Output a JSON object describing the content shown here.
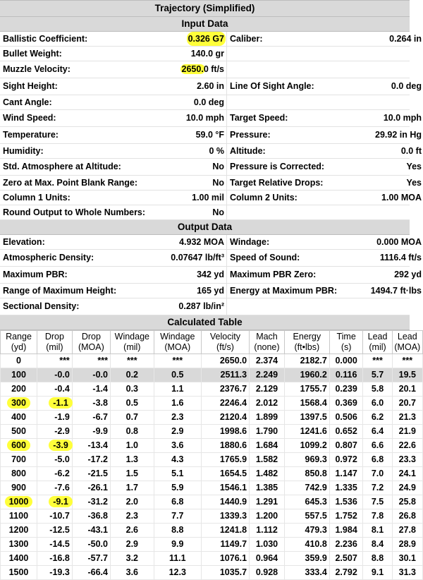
{
  "title": "Trajectory (Simplified)",
  "input_section_title": "Input Data",
  "input_rows": [
    {
      "l1": "Ballistic Coefficient:",
      "v1": "0.326 G7",
      "l2": "Caliber:",
      "v2": "0.264 in",
      "hl": true
    },
    {
      "l1": "Bullet Weight:",
      "v1": "140.0 gr",
      "l2": "",
      "v2": ""
    },
    {
      "l1": "Muzzle Velocity:",
      "v1a": "2650.",
      "v1b": "0 ft/s",
      "l2": "",
      "v2": "",
      "gap": true,
      "split": true
    },
    {
      "l1": "Sight Height:",
      "v1": "2.60 in",
      "l2": "Line Of Sight Angle:",
      "v2": "0.0 deg",
      "gap": true
    },
    {
      "l1": "Cant Angle:",
      "v1": "0.0 deg",
      "l2": "",
      "v2": ""
    },
    {
      "l1": "Wind Speed:",
      "v1": "10.0 mph",
      "l2": "Target Speed:",
      "v2": "10.0 mph",
      "gap": true
    },
    {
      "l1": "Temperature:",
      "v1": "59.0 °F",
      "l2": "Pressure:",
      "v2": "29.92 in Hg",
      "gap": true
    },
    {
      "l1": "Humidity:",
      "v1": "0 %",
      "l2": "Altitude:",
      "v2": "0.0 ft"
    },
    {
      "l1": "Std. Atmosphere at Altitude:",
      "v1": "No",
      "l2": "Pressure is Corrected:",
      "v2": "Yes",
      "gap": true
    },
    {
      "l1": "Zero at Max. Point Blank Range:",
      "v1": "No",
      "l2": "Target Relative Drops:",
      "v2": "Yes"
    },
    {
      "l1": "Column 1 Units:",
      "v1": "1.00 mil",
      "l2": "Column 2 Units:",
      "v2": "1.00 MOA"
    },
    {
      "l1": "Round Output to Whole Numbers:",
      "v1": "No",
      "l2": "",
      "v2": ""
    }
  ],
  "output_section_title": "Output Data",
  "output_rows": [
    {
      "l1": "Elevation:",
      "v1": "4.932 MOA",
      "l2": "Windage:",
      "v2": "0.000 MOA"
    },
    {
      "l1": "Atmospheric Density:",
      "v1": "0.07647 lb/ft³",
      "l2": "Speed of Sound:",
      "v2": "1116.4 ft/s",
      "gap": true
    },
    {
      "l1": "Maximum PBR:",
      "v1": "342 yd",
      "l2": "Maximum PBR Zero:",
      "v2": "292 yd",
      "gap": true
    },
    {
      "l1": "Range of Maximum Height:",
      "v1": "165 yd",
      "l2": "Energy at Maximum PBR:",
      "v2": "1494.7 ft·lbs"
    },
    {
      "l1": "Sectional Density:",
      "v1": "0.287 lb/in²",
      "l2": "",
      "v2": "",
      "gap": true
    }
  ],
  "table_section_title": "Calculated Table",
  "table_headers": [
    [
      "Range",
      "(yd)"
    ],
    [
      "Drop",
      "(mil)"
    ],
    [
      "Drop",
      "(MOA)"
    ],
    [
      "Windage",
      "(mil)"
    ],
    [
      "Windage",
      "(MOA)"
    ],
    [
      "Velocity",
      "(ft/s)"
    ],
    [
      "Mach",
      "(none)"
    ],
    [
      "Energy",
      "(ft•lbs)"
    ],
    [
      "Time",
      "(s)"
    ],
    [
      "Lead",
      "(mil)"
    ],
    [
      "Lead",
      "(MOA)"
    ]
  ],
  "table_rows": [
    [
      "0",
      "***",
      "***",
      "***",
      "***",
      "2650.0",
      "2.374",
      "2182.7",
      "0.000",
      "***",
      "***"
    ],
    [
      "100",
      "-0.0",
      "-0.0",
      "0.2",
      "0.5",
      "2511.3",
      "2.249",
      "1960.2",
      "0.116",
      "5.7",
      "19.5"
    ],
    [
      "200",
      "-0.4",
      "-1.4",
      "0.3",
      "1.1",
      "2376.7",
      "2.129",
      "1755.7",
      "0.239",
      "5.8",
      "20.1"
    ],
    [
      "300",
      "-1.1",
      "-3.8",
      "0.5",
      "1.6",
      "2246.4",
      "2.012",
      "1568.4",
      "0.369",
      "6.0",
      "20.7"
    ],
    [
      "400",
      "-1.9",
      "-6.7",
      "0.7",
      "2.3",
      "2120.4",
      "1.899",
      "1397.5",
      "0.506",
      "6.2",
      "21.3"
    ],
    [
      "500",
      "-2.9",
      "-9.9",
      "0.8",
      "2.9",
      "1998.6",
      "1.790",
      "1241.6",
      "0.652",
      "6.4",
      "21.9"
    ],
    [
      "600",
      "-3.9",
      "-13.4",
      "1.0",
      "3.6",
      "1880.6",
      "1.684",
      "1099.2",
      "0.807",
      "6.6",
      "22.6"
    ],
    [
      "700",
      "-5.0",
      "-17.2",
      "1.3",
      "4.3",
      "1765.9",
      "1.582",
      "969.3",
      "0.972",
      "6.8",
      "23.3"
    ],
    [
      "800",
      "-6.2",
      "-21.5",
      "1.5",
      "5.1",
      "1654.5",
      "1.482",
      "850.8",
      "1.147",
      "7.0",
      "24.1"
    ],
    [
      "900",
      "-7.6",
      "-26.1",
      "1.7",
      "5.9",
      "1546.1",
      "1.385",
      "742.9",
      "1.335",
      "7.2",
      "24.9"
    ],
    [
      "1000",
      "-9.1",
      "-31.2",
      "2.0",
      "6.8",
      "1440.9",
      "1.291",
      "645.3",
      "1.536",
      "7.5",
      "25.8"
    ],
    [
      "1100",
      "-10.7",
      "-36.8",
      "2.3",
      "7.7",
      "1339.3",
      "1.200",
      "557.5",
      "1.752",
      "7.8",
      "26.8"
    ],
    [
      "1200",
      "-12.5",
      "-43.1",
      "2.6",
      "8.8",
      "1241.8",
      "1.112",
      "479.3",
      "1.984",
      "8.1",
      "27.8"
    ],
    [
      "1300",
      "-14.5",
      "-50.0",
      "2.9",
      "9.9",
      "1149.7",
      "1.030",
      "410.8",
      "2.236",
      "8.4",
      "28.9"
    ],
    [
      "1400",
      "-16.8",
      "-57.7",
      "3.2",
      "11.1",
      "1076.1",
      "0.964",
      "359.9",
      "2.507",
      "8.8",
      "30.1"
    ],
    [
      "1500",
      "-19.3",
      "-66.4",
      "3.6",
      "12.3",
      "1035.7",
      "0.928",
      "333.4",
      "2.792",
      "9.1",
      "31.3"
    ]
  ],
  "highlighted_rows": [
    3,
    6,
    10
  ],
  "grey_rows": [
    1
  ],
  "highlight_color": "#ffff3a"
}
